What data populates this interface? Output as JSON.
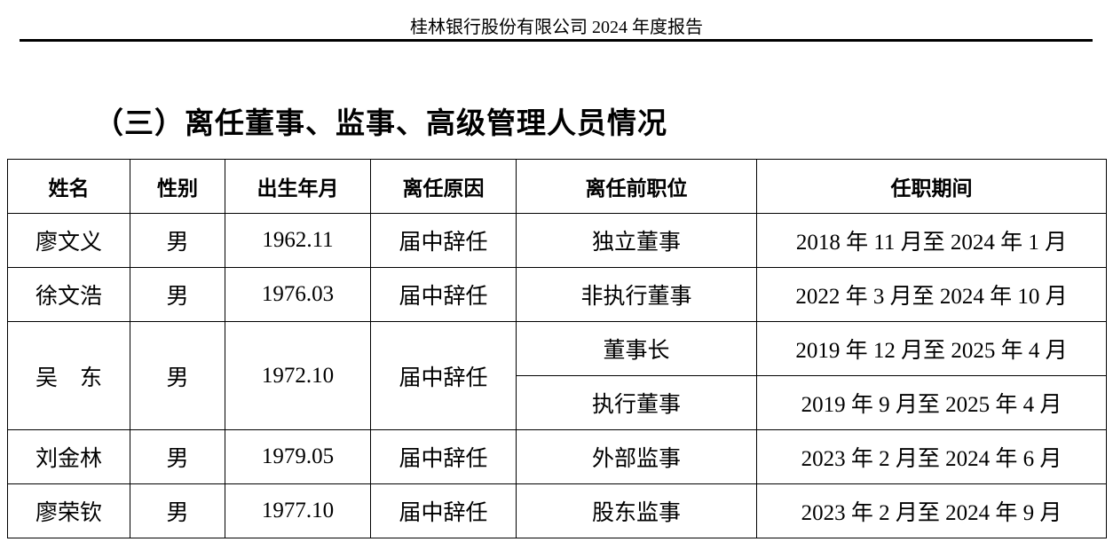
{
  "header": {
    "title": "桂林银行股份有限公司 2024 年度报告"
  },
  "section_title": "（三）离任董事、监事、高级管理人员情况",
  "table": {
    "columns": [
      "姓名",
      "性别",
      "出生年月",
      "离任原因",
      "离任前职位",
      "任职期间"
    ],
    "rows": [
      {
        "name": "廖文义",
        "gender": "男",
        "birth": "1962.11",
        "reason": "届中辞任",
        "positions": [
          {
            "title": "独立董事",
            "period": "2018 年 11 月至 2024 年 1 月"
          }
        ]
      },
      {
        "name": "徐文浩",
        "gender": "男",
        "birth": "1976.03",
        "reason": "届中辞任",
        "positions": [
          {
            "title": "非执行董事",
            "period": "2022 年 3 月至 2024 年 10 月"
          }
        ]
      },
      {
        "name": "吴　东",
        "gender": "男",
        "birth": "1972.10",
        "reason": "届中辞任",
        "positions": [
          {
            "title": "董事长",
            "period": "2019 年 12 月至 2025 年 4 月"
          },
          {
            "title": "执行董事",
            "period": "2019 年 9 月至 2025 年 4 月"
          }
        ]
      },
      {
        "name": "刘金林",
        "gender": "男",
        "birth": "1979.05",
        "reason": "届中辞任",
        "positions": [
          {
            "title": "外部监事",
            "period": "2023 年 2 月至 2024 年 6 月"
          }
        ]
      },
      {
        "name": "廖荣钦",
        "gender": "男",
        "birth": "1977.10",
        "reason": "届中辞任",
        "positions": [
          {
            "title": "股东监事",
            "period": "2023 年 2 月至 2024 年 9 月"
          }
        ]
      }
    ]
  }
}
